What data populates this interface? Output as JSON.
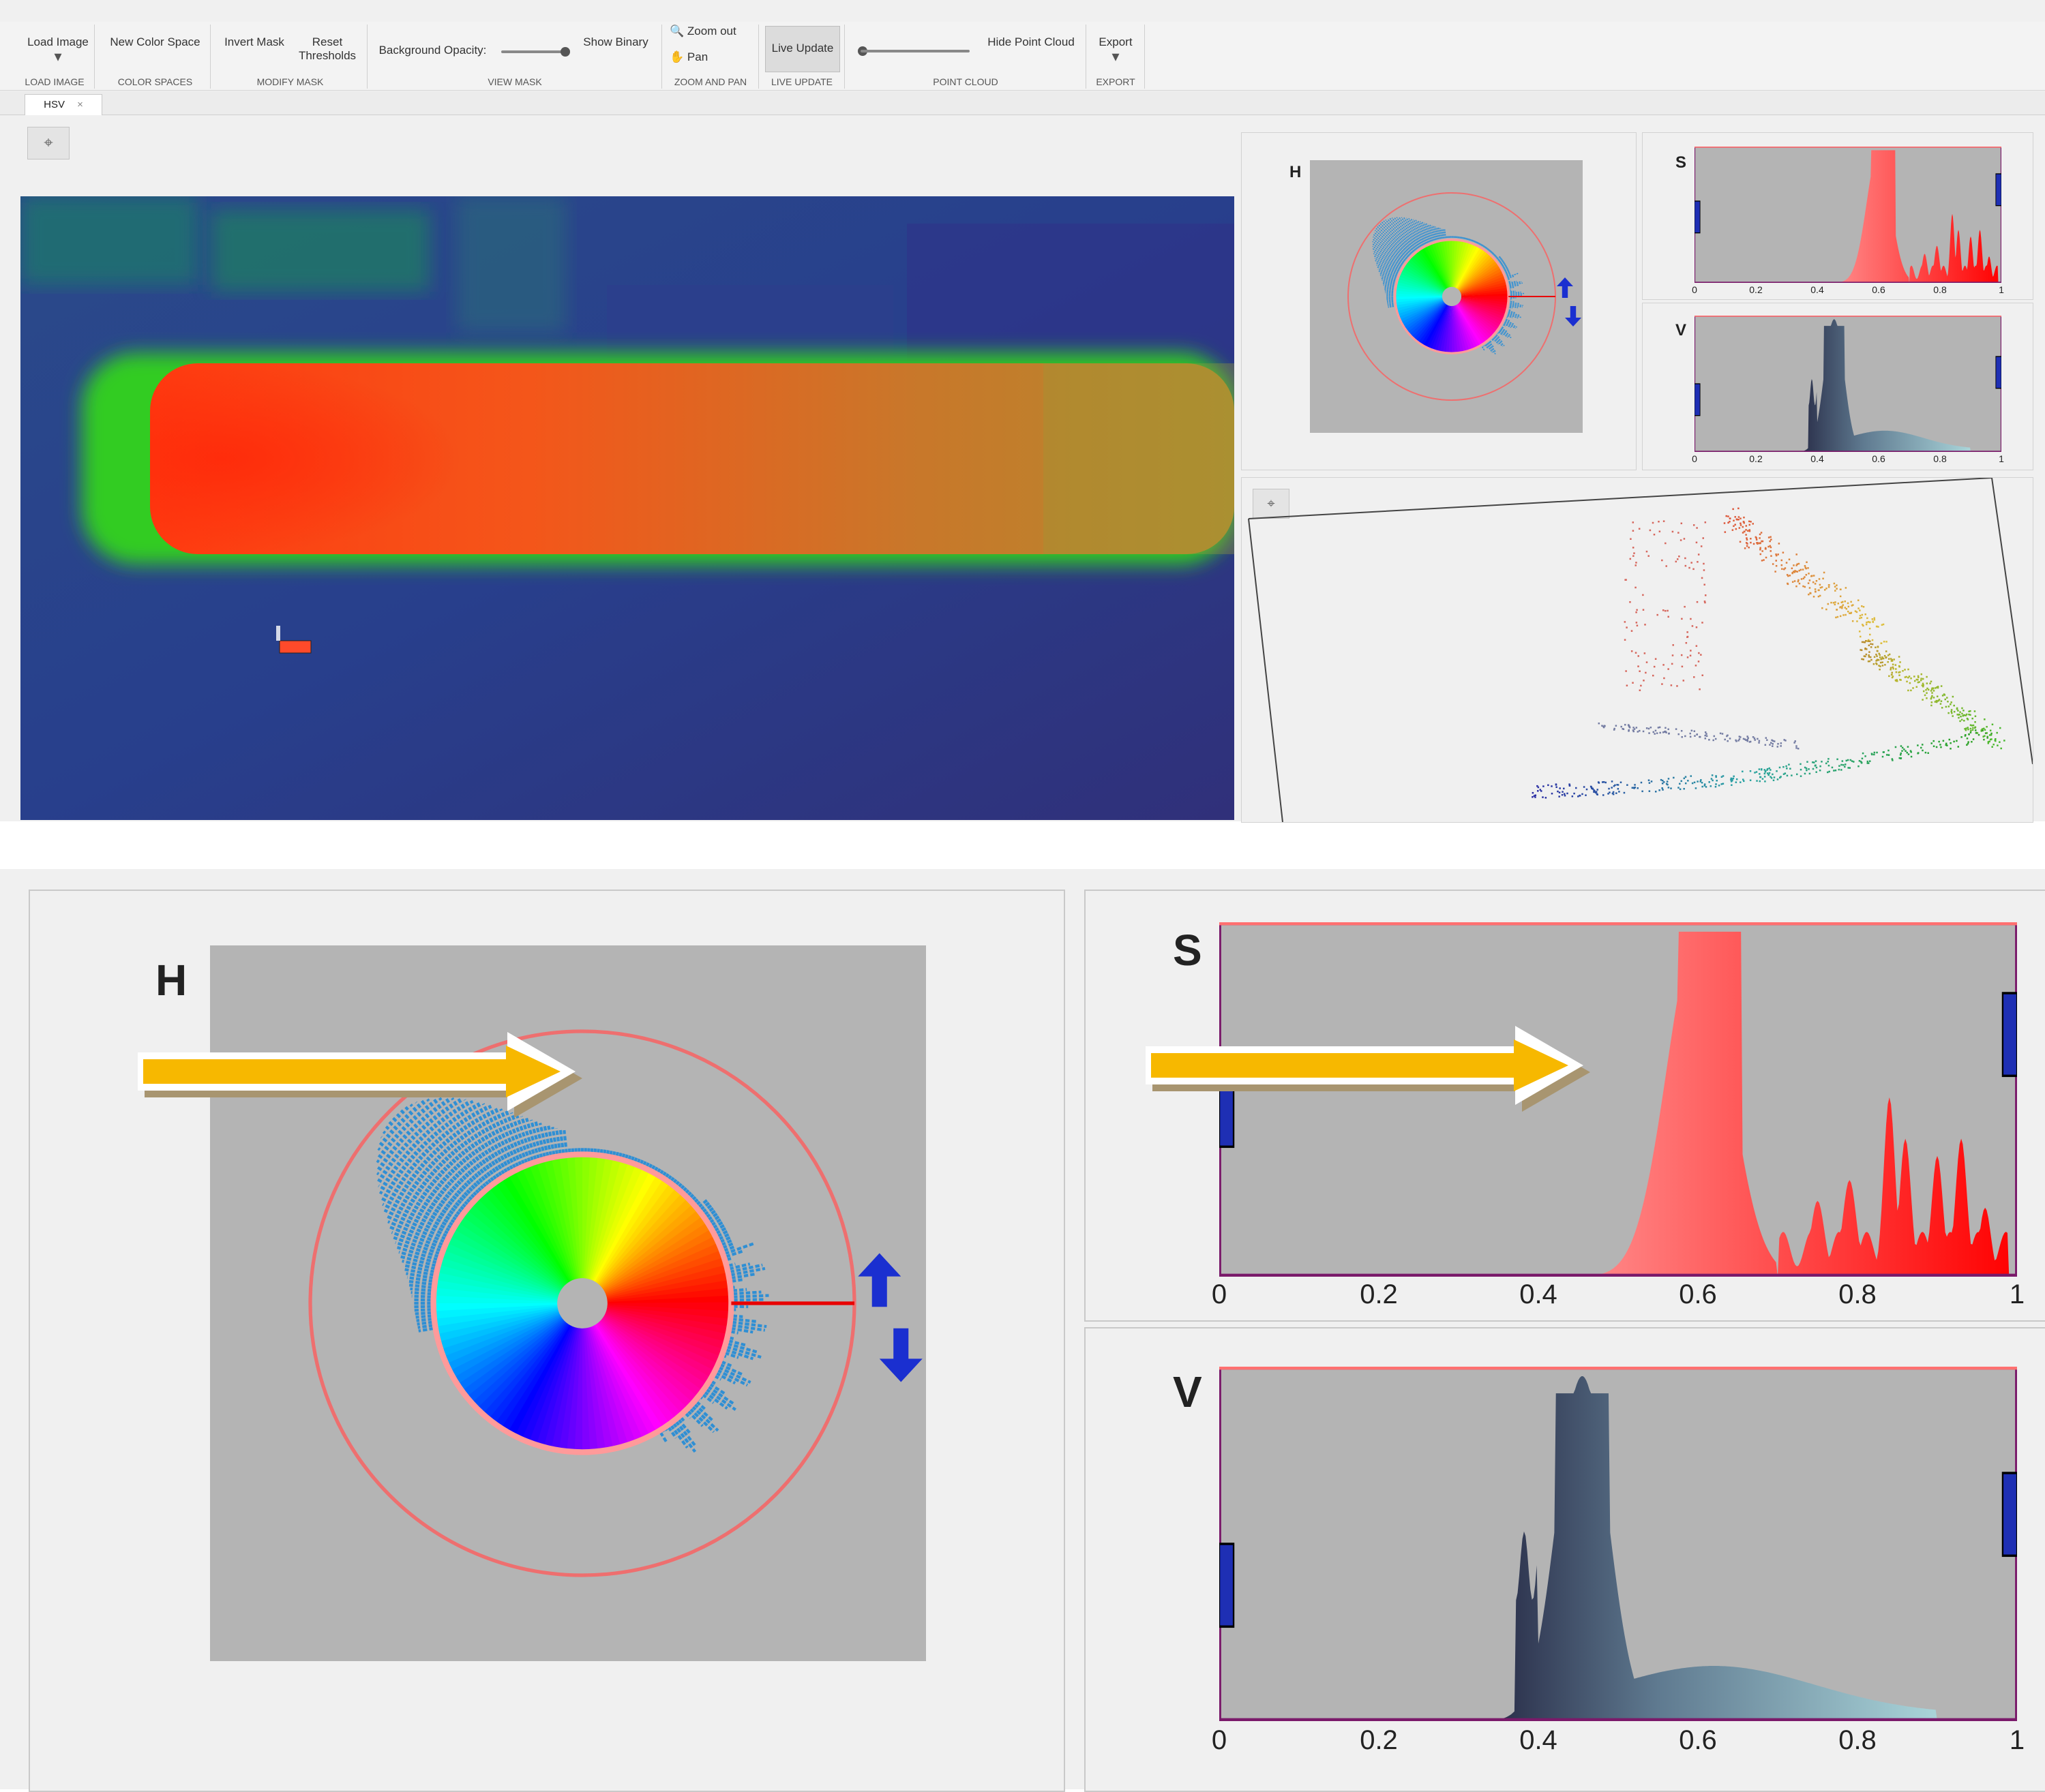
{
  "toolbar": {
    "load_image": "Load Image",
    "new_color_space": "New Color Space",
    "invert_mask": "Invert Mask",
    "reset_thresholds": "Reset\nThresholds",
    "background_opacity": "Background Opacity:",
    "background_opacity_value": 0.95,
    "show_binary": "Show Binary",
    "zoom_out": "Zoom out",
    "pan": "Pan",
    "live_update": "Live Update",
    "point_cloud_slider_value": 0.0,
    "hide_point_cloud": "Hide Point Cloud",
    "export": "Export",
    "sections": [
      "LOAD IMAGE",
      "COLOR SPACES",
      "MODIFY MASK",
      "VIEW MASK",
      "ZOOM AND PAN",
      "LIVE UPDATE",
      "POINT CLOUD",
      "EXPORT"
    ]
  },
  "tabs": [
    {
      "label": "HSV",
      "close": "×"
    }
  ],
  "hue_panel": {
    "label": "H"
  },
  "saturation_panel": {
    "label": "S",
    "ticks": [
      "0",
      "0.2",
      "0.4",
      "0.6",
      "0.8",
      "1"
    ],
    "threshold_low": 0.0,
    "threshold_high": 1.0
  },
  "value_panel": {
    "label": "V",
    "ticks": [
      "0",
      "0.2",
      "0.4",
      "0.6",
      "0.8",
      "1"
    ],
    "threshold_low": 0.0,
    "threshold_high": 1.0
  },
  "colors": {
    "histogram_bg": "#b4b4b4",
    "saturation_fill": "#ff4848",
    "value_fill_dark": "#2a2f4a",
    "value_fill_light": "#bfeeee",
    "threshold_marker": "#1e2fb4",
    "hue_ring": "#ee6f6f",
    "hue_histogram": "#2f8fd4",
    "annotation_arrow": "#f7b800"
  },
  "icons": [
    "select-cursor-icon",
    "zoom-out-icon",
    "pan-hand-icon",
    "export-dropdown-icon",
    "tab-close-icon"
  ]
}
